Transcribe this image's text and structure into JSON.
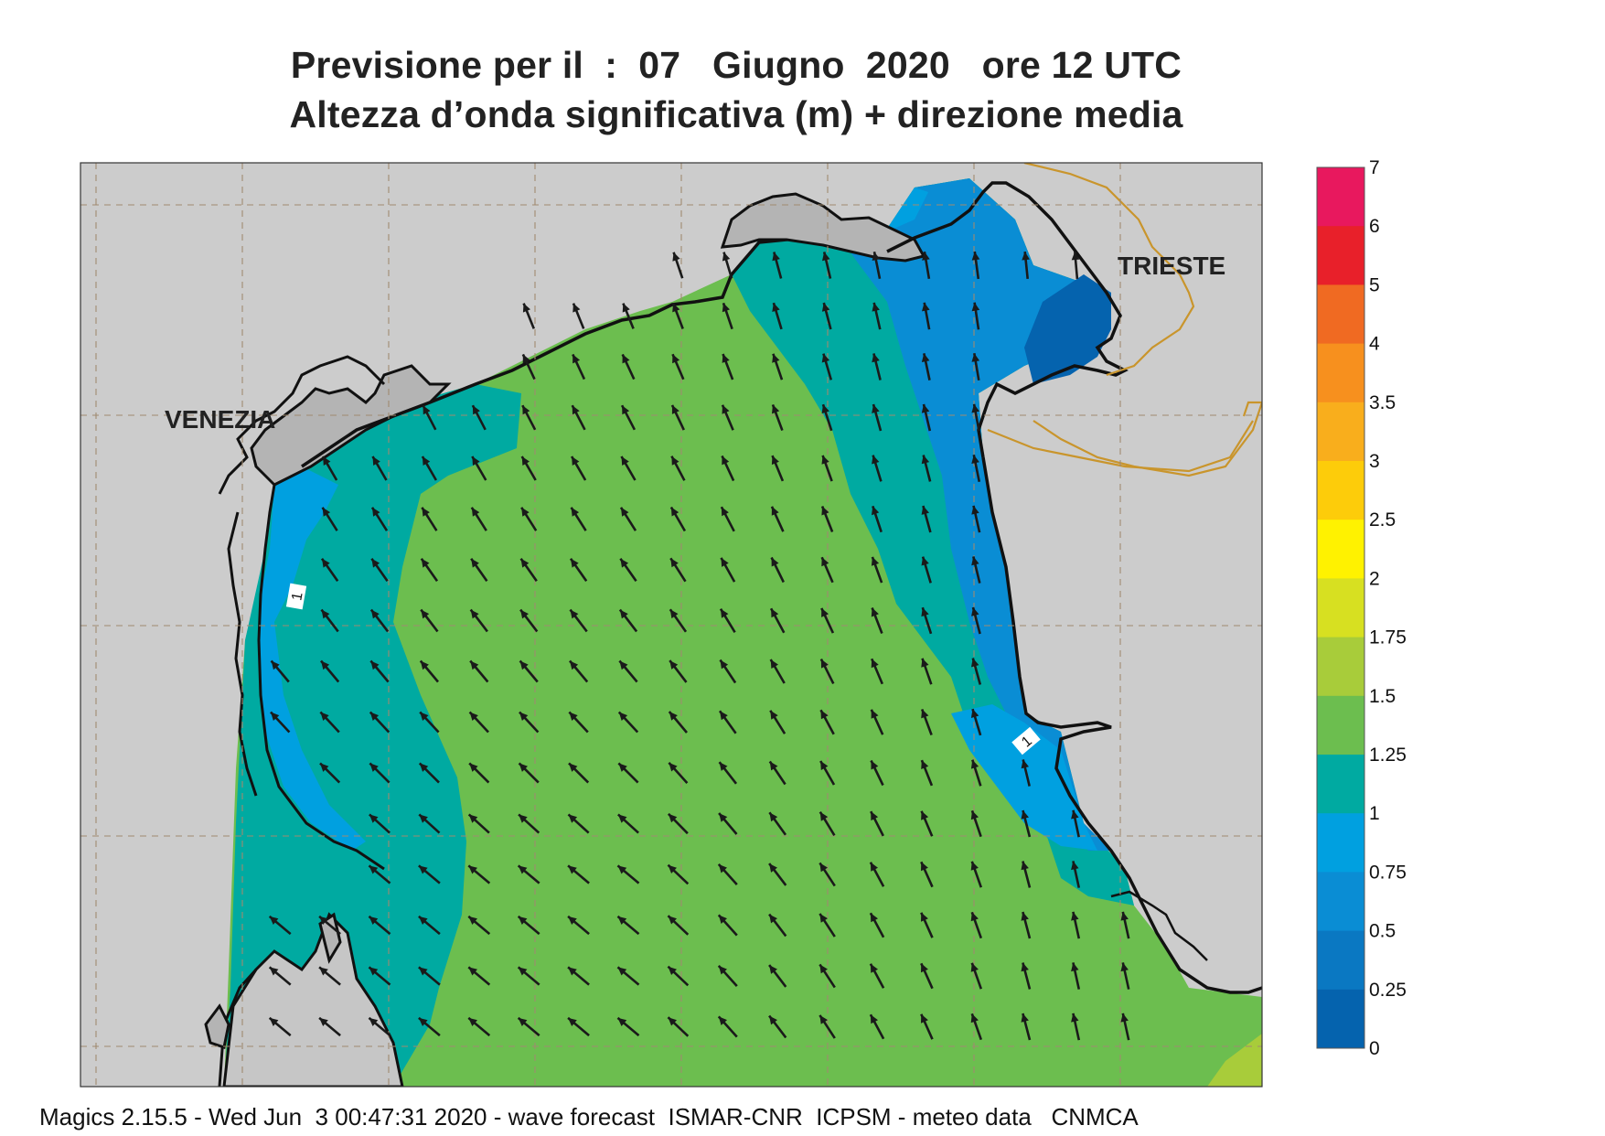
{
  "title": {
    "line1": "Previsione per il  :  07   Giugno  2020   ore 12 UTC",
    "line2": "Altezza d’onda significativa (m) + direzione media"
  },
  "places": {
    "venezia": "VENEZIA",
    "trieste": "TRIESTE"
  },
  "contour_labels": [
    "1",
    "1"
  ],
  "colorbar": {
    "levels": [
      {
        "label": "7",
        "color": "#e8185e"
      },
      {
        "label": "6",
        "color": "#e8202a"
      },
      {
        "label": "5",
        "color": "#f06a22"
      },
      {
        "label": "4",
        "color": "#f7901e"
      },
      {
        "label": "3.5",
        "color": "#f9ae1c"
      },
      {
        "label": "3",
        "color": "#fdcc0a"
      },
      {
        "label": "2.5",
        "color": "#fff200"
      },
      {
        "label": "2",
        "color": "#d7e021"
      },
      {
        "label": "1.75",
        "color": "#a8cc3a"
      },
      {
        "label": "1.5",
        "color": "#6cbe4f"
      },
      {
        "label": "1.25",
        "color": "#00aaa1"
      },
      {
        "label": "1",
        "color": "#00a0e0"
      },
      {
        "label": "0.75",
        "color": "#0a8dd4"
      },
      {
        "label": "0.5",
        "color": "#0a78c2"
      },
      {
        "label": "0.25",
        "color": "#0563ae"
      },
      {
        "label": "0",
        "color": ""
      }
    ]
  },
  "colors": {
    "land": "#cccccc",
    "grid": "#a08a70",
    "border": "#c9952c",
    "arrow": "#1a1a1a"
  },
  "footer": "Magics 2.15.5 - Wed Jun  3 00:47:31 2020 - wave forecast  ISMAR-CNR  ICPSM - meteo data   CNMCA"
}
